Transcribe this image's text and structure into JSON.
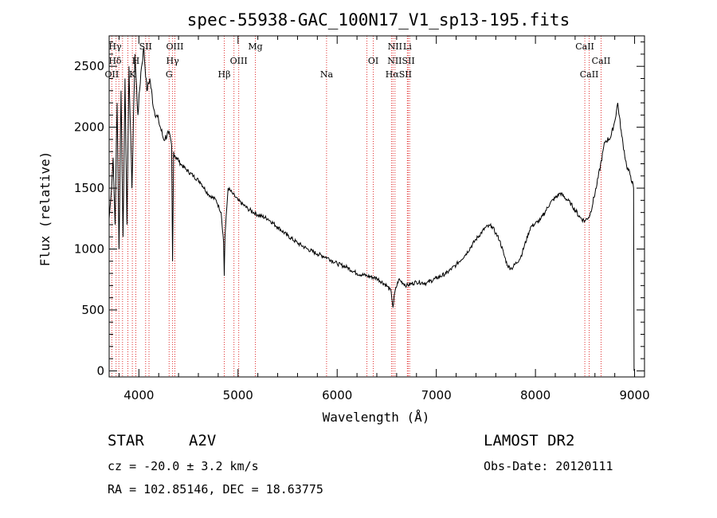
{
  "chart_data": {
    "type": "line",
    "title": "spec-55938-GAC_100N17_V1_sp13-195.fits",
    "xlabel": "Wavelength (Å)",
    "ylabel": "Flux (relative)",
    "xlim": [
      3700,
      9100
    ],
    "ylim": [
      -50,
      2750
    ],
    "x_ticks": [
      "4000",
      "5000",
      "6000",
      "7000",
      "8000",
      "9000"
    ],
    "y_ticks": [
      "0",
      "500",
      "1000",
      "1500",
      "2000",
      "2500"
    ],
    "x_tick_values": [
      4000,
      5000,
      6000,
      7000,
      8000,
      9000
    ],
    "y_tick_values": [
      0,
      500,
      1000,
      1500,
      2000,
      2500
    ],
    "grid": false,
    "series": [
      {
        "x": [
          3700,
          3720,
          3740,
          3760,
          3780,
          3800,
          3820,
          3840,
          3860,
          3880,
          3900,
          3930,
          3960,
          3990,
          4020,
          4050,
          4080,
          4110,
          4150,
          4200,
          4250,
          4300,
          4330,
          4340,
          4350,
          4380,
          4420,
          4480,
          4550,
          4620,
          4700,
          4780,
          4830,
          4855,
          4861,
          4868,
          4900,
          4950,
          5000,
          5100,
          5200,
          5300,
          5400,
          5500,
          5600,
          5700,
          5800,
          5900,
          6000,
          6100,
          6200,
          6300,
          6400,
          6500,
          6545,
          6563,
          6580,
          6620,
          6700,
          6800,
          6900,
          7000,
          7100,
          7200,
          7300,
          7400,
          7500,
          7560,
          7600,
          7640,
          7680,
          7720,
          7760,
          7850,
          7950,
          8050,
          8150,
          8250,
          8350,
          8450,
          8500,
          8550,
          8620,
          8700,
          8760,
          8800,
          8830,
          8870,
          8920,
          8960,
          8990
        ],
        "y": [
          1250,
          1450,
          1750,
          1200,
          2200,
          1000,
          2300,
          1100,
          2400,
          1200,
          2500,
          1500,
          2600,
          2100,
          2450,
          2650,
          2300,
          2400,
          2150,
          2050,
          1900,
          1950,
          1850,
          900,
          1800,
          1750,
          1700,
          1650,
          1600,
          1550,
          1450,
          1400,
          1300,
          1050,
          780,
          1100,
          1500,
          1450,
          1400,
          1330,
          1280,
          1250,
          1180,
          1110,
          1050,
          1000,
          960,
          930,
          880,
          850,
          800,
          780,
          760,
          700,
          650,
          520,
          640,
          750,
          700,
          730,
          720,
          760,
          800,
          870,
          960,
          1080,
          1180,
          1190,
          1130,
          1070,
          960,
          860,
          840,
          930,
          1180,
          1240,
          1380,
          1460,
          1380,
          1260,
          1230,
          1280,
          1530,
          1880,
          1920,
          2050,
          2200,
          1930,
          1680,
          1600,
          1500
        ]
      }
    ],
    "spectral_lines": [
      {
        "label": "Hγ",
        "x": 3760,
        "row": 0
      },
      {
        "label": "Hδ",
        "x": 3760,
        "row": 1
      },
      {
        "label": "OII",
        "x": 3727,
        "row": 2
      },
      {
        "label": "SII",
        "x": 4068,
        "row": 0
      },
      {
        "label": "H",
        "x": 3969,
        "row": 1
      },
      {
        "label": "K",
        "x": 3934,
        "row": 2
      },
      {
        "label": "OIII",
        "x": 4363,
        "row": 0
      },
      {
        "label": "Hγ",
        "x": 4340,
        "row": 1
      },
      {
        "label": "G",
        "x": 4305,
        "row": 2
      },
      {
        "label": "Mg",
        "x": 5175,
        "row": 0
      },
      {
        "label": "OIII",
        "x": 5007,
        "row": 1
      },
      {
        "label": "Hβ",
        "x": 4861,
        "row": 2
      },
      {
        "label": "Na",
        "x": 5893,
        "row": 2
      },
      {
        "label": "NII",
        "x": 6583,
        "row": 0
      },
      {
        "label": "Li",
        "x": 6708,
        "row": 0
      },
      {
        "label": "OI",
        "x": 6364,
        "row": 1
      },
      {
        "label": "NIISII",
        "x": 6645,
        "row": 1
      },
      {
        "label": "HαSII",
        "x": 6620,
        "row": 2
      },
      {
        "label": "CaII",
        "x": 8498,
        "row": 0
      },
      {
        "label": "CaII",
        "x": 8662,
        "row": 1
      },
      {
        "label": "CaII",
        "x": 8542,
        "row": 2
      }
    ],
    "line_marks_x": [
      3727,
      3770,
      3798,
      3835,
      3889,
      3934,
      3969,
      4068,
      4102,
      4305,
      4340,
      4363,
      4861,
      4959,
      5007,
      5175,
      5893,
      6300,
      6364,
      6548,
      6563,
      6583,
      6708,
      6716,
      6731,
      8498,
      8542,
      8662
    ]
  },
  "info": {
    "object_type": "STAR",
    "subclass": "A2V",
    "survey": "LAMOST DR2",
    "redshift": "cz = -20.0 ± 3.2 km/s",
    "obs_date": "Obs-Date: 20120111",
    "coords": "RA = 102.85146, DEC =  18.63775"
  }
}
